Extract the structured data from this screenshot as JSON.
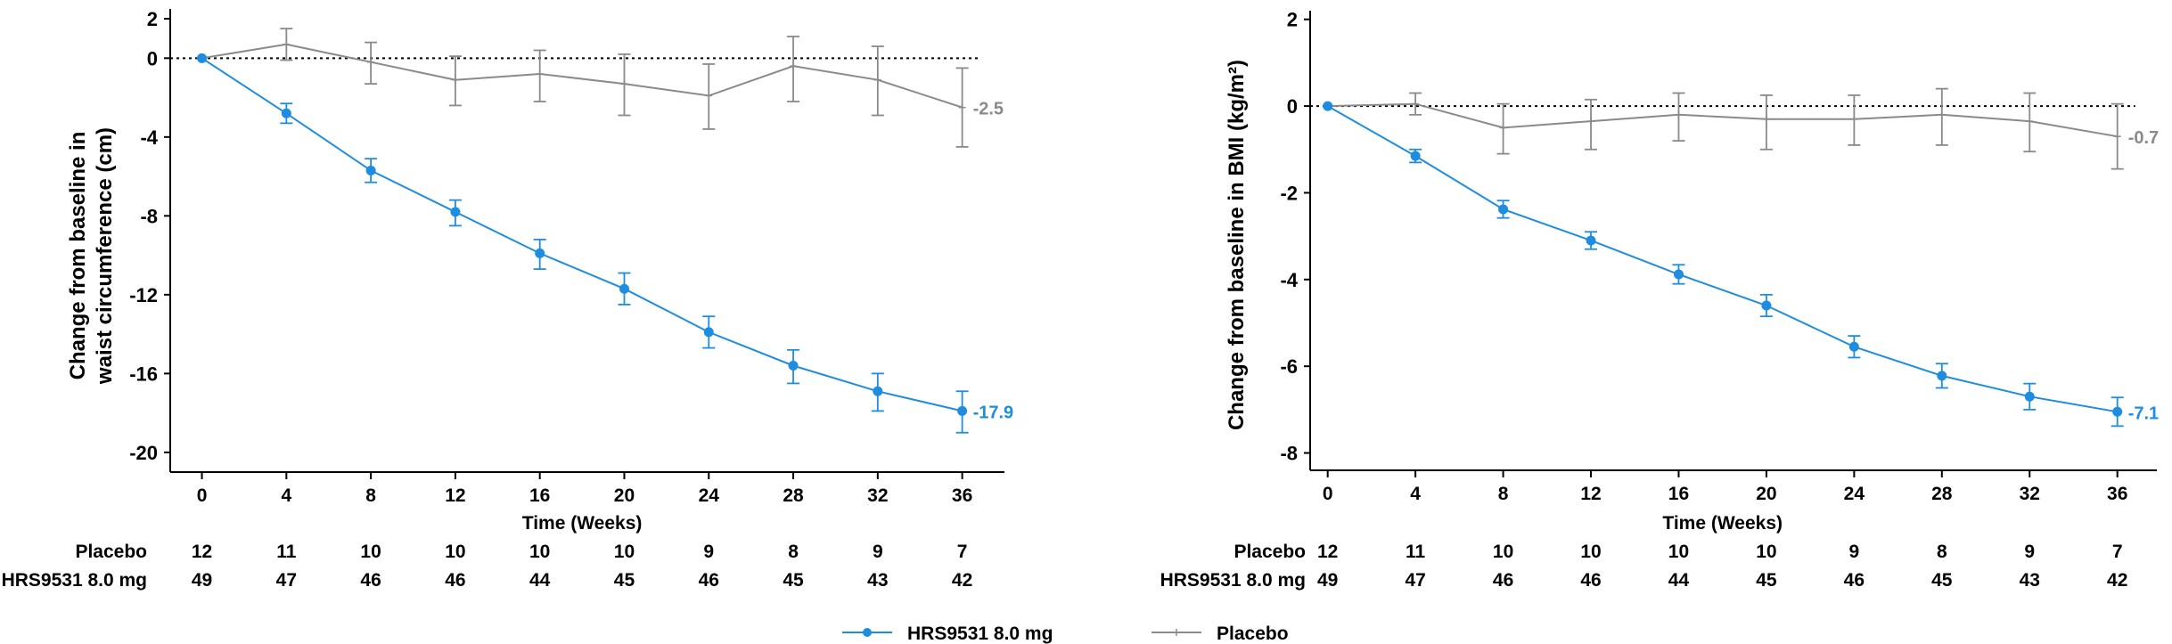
{
  "colors": {
    "treatment": "#1f8ddf",
    "placebo": "#8a8a8a",
    "axis": "#000000",
    "reference_line": "#000000"
  },
  "legend": {
    "placement": "bottom-center",
    "items": [
      {
        "label": "HRS9531 8.0 mg",
        "series": "HRS9531 8.0 mg",
        "marker": "filled-circle"
      },
      {
        "label": "Placebo",
        "series": "Placebo",
        "marker": "plus"
      }
    ]
  },
  "chart_data": [
    {
      "type": "line",
      "title": "",
      "xlabel": "Time (Weeks)",
      "ylabel_lines": [
        "Change from baseline in",
        "waist circumference (cm)"
      ],
      "x": [
        0,
        4,
        8,
        12,
        16,
        20,
        24,
        28,
        32,
        36
      ],
      "x_ticks": [
        "0",
        "4",
        "8",
        "12",
        "16",
        "20",
        "24",
        "28",
        "32",
        "36"
      ],
      "y_ticks": [
        2,
        0,
        -4,
        -8,
        -12,
        -16,
        -20
      ],
      "ylim": [
        -21,
        2.5
      ],
      "xlim": [
        -1.5,
        38
      ],
      "grid": false,
      "reference_line_y": 0,
      "series": [
        {
          "name": "HRS9531 8.0 mg",
          "marker": "filled-circle",
          "values": [
            0,
            -2.8,
            -5.7,
            -7.8,
            -9.9,
            -11.7,
            -13.9,
            -15.6,
            -16.9,
            -17.9
          ],
          "error_low": [
            0,
            -3.3,
            -6.3,
            -8.5,
            -10.7,
            -12.5,
            -14.7,
            -16.5,
            -17.9,
            -19.0
          ],
          "error_high": [
            0,
            -2.3,
            -5.1,
            -7.2,
            -9.2,
            -10.9,
            -13.1,
            -14.8,
            -16.0,
            -16.9
          ],
          "end_label": "-17.9"
        },
        {
          "name": "Placebo",
          "marker": "plus",
          "values": [
            0,
            0.7,
            -0.2,
            -1.1,
            -0.8,
            -1.3,
            -1.9,
            -0.4,
            -1.1,
            -2.5
          ],
          "error_low": [
            0,
            -0.1,
            -1.3,
            -2.4,
            -2.2,
            -2.9,
            -3.6,
            -2.2,
            -2.9,
            -4.5
          ],
          "error_high": [
            0,
            1.5,
            0.8,
            0.1,
            0.4,
            0.2,
            -0.3,
            1.1,
            0.6,
            -0.5
          ],
          "end_label": "-2.5"
        }
      ],
      "at_risk": [
        {
          "label": "Placebo",
          "counts": [
            "12",
            "11",
            "10",
            "10",
            "10",
            "10",
            "9",
            "8",
            "9",
            "7"
          ]
        },
        {
          "label": "HRS9531 8.0 mg",
          "counts": [
            "49",
            "47",
            "46",
            "46",
            "44",
            "45",
            "46",
            "45",
            "43",
            "42"
          ]
        }
      ]
    },
    {
      "type": "line",
      "title": "",
      "xlabel": "Time (Weeks)",
      "ylabel_lines": [
        "Change from baseline in BMI (kg/m²)"
      ],
      "x": [
        0,
        4,
        8,
        12,
        16,
        20,
        24,
        28,
        32,
        36
      ],
      "x_ticks": [
        "0",
        "4",
        "8",
        "12",
        "16",
        "20",
        "24",
        "28",
        "32",
        "36"
      ],
      "y_ticks": [
        2,
        0,
        -2,
        -4,
        -6,
        -8
      ],
      "ylim": [
        -8.4,
        2.2
      ],
      "xlim": [
        -0.8,
        37.8
      ],
      "grid": false,
      "reference_line_y": 0,
      "series": [
        {
          "name": "HRS9531 8.0 mg",
          "marker": "filled-circle",
          "values": [
            0,
            -1.15,
            -2.38,
            -3.1,
            -3.88,
            -4.6,
            -5.55,
            -6.22,
            -6.7,
            -7.05
          ],
          "error_low": [
            0,
            -1.3,
            -2.58,
            -3.3,
            -4.1,
            -4.85,
            -5.8,
            -6.5,
            -7.0,
            -7.38
          ],
          "error_high": [
            0,
            -1.0,
            -2.18,
            -2.9,
            -3.66,
            -4.35,
            -5.3,
            -5.94,
            -6.4,
            -6.72
          ],
          "end_label": "-7.1"
        },
        {
          "name": "Placebo",
          "marker": "plus",
          "values": [
            0,
            0.05,
            -0.5,
            -0.35,
            -0.2,
            -0.3,
            -0.3,
            -0.2,
            -0.35,
            -0.7
          ],
          "error_low": [
            0,
            -0.2,
            -1.1,
            -1.0,
            -0.8,
            -1.0,
            -0.9,
            -0.9,
            -1.05,
            -1.45
          ],
          "error_high": [
            0,
            0.3,
            0.05,
            0.15,
            0.3,
            0.25,
            0.25,
            0.4,
            0.3,
            0.05
          ],
          "end_label": "-0.7"
        }
      ],
      "at_risk": [
        {
          "label": "Placebo",
          "counts": [
            "12",
            "11",
            "10",
            "10",
            "10",
            "10",
            "9",
            "8",
            "9",
            "7"
          ]
        },
        {
          "label": "HRS9531 8.0 mg",
          "counts": [
            "49",
            "47",
            "46",
            "46",
            "44",
            "45",
            "46",
            "45",
            "43",
            "42"
          ]
        }
      ]
    }
  ]
}
